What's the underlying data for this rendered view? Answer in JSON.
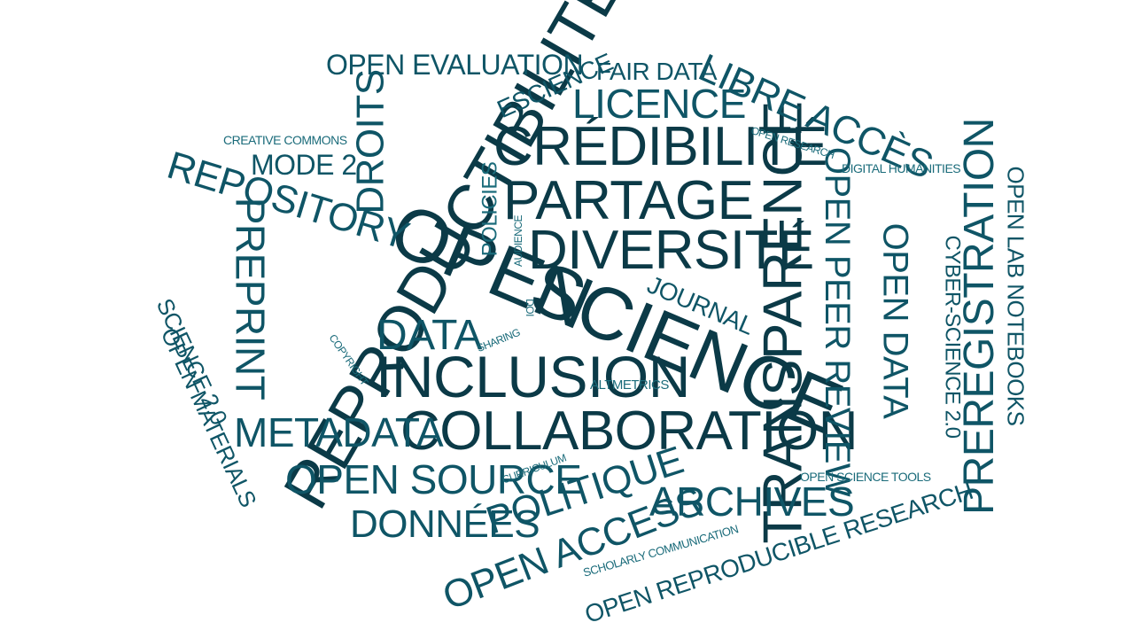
{
  "words": {
    "open_science_1": "OPEN",
    "open_science_2": "SCIENCE",
    "reproductibilite": "REPRODUCTIBILITÉ",
    "credibilite": "CRÉDIBILITÉ",
    "partage": "PARTAGE",
    "diversite": "DIVERSITÉ",
    "collaboration": "COLLABORATION",
    "inclusion": "INCLUSION",
    "transparence": "TRANSPARENCE",
    "preregistration": "PREREGISTRATION",
    "open_peer_review": "OPEN PEER REVIEW",
    "open_data": "OPEN DATA",
    "cyber_science": "CYBER-SCIENCE 2.0",
    "open_lab_notebooks": "OPEN LAB NOTEBOOKS",
    "digital_humanities": "DIGITAL HUMANITIES",
    "open_research": "OPEN RESEARCH",
    "libre_acces": "LIBRE ACCÈS",
    "licence": "LICENCE",
    "fair_data": "FAIR DATA",
    "escience": "ESCIENCE",
    "open_evaluation": "OPEN EVALUATION",
    "droits": "DROITS",
    "creative_commons": "CREATIVE COMMONS",
    "mode_2": "MODE 2",
    "repository": "REPOSITORY",
    "preprint": "PREPRINT",
    "science_2": "SCIENCE 2.0",
    "open_materials": "OPEN MATERIALS",
    "metadata": "METADATA",
    "open_source": "OPEN SOURCE",
    "donnees": "DONNÉES",
    "politique": "POLITIQUE",
    "open_access": "OPEN ACCESS",
    "archives": "ARCHIVES",
    "open_reproducible_research": "OPEN REPRODUCIBLE RESEARCH",
    "scholarly_communication": "SCHOLARLY COMMUNICATION",
    "open_science_tools": "OPEN SCIENCE TOOLS",
    "curriculum": "CURRICULUM",
    "altmetrics": "ALTMETRICS",
    "journal": "JOURNAL",
    "data": "DATA",
    "doi": "DOI",
    "sharing": "SHARING",
    "copyright": "COPYRIGHT",
    "audience": "AUDIENCE",
    "policies": "POLICIES"
  },
  "colors": {
    "dark": "#0b3a47",
    "mid": "#0f5566",
    "light": "#1a6b7a"
  }
}
